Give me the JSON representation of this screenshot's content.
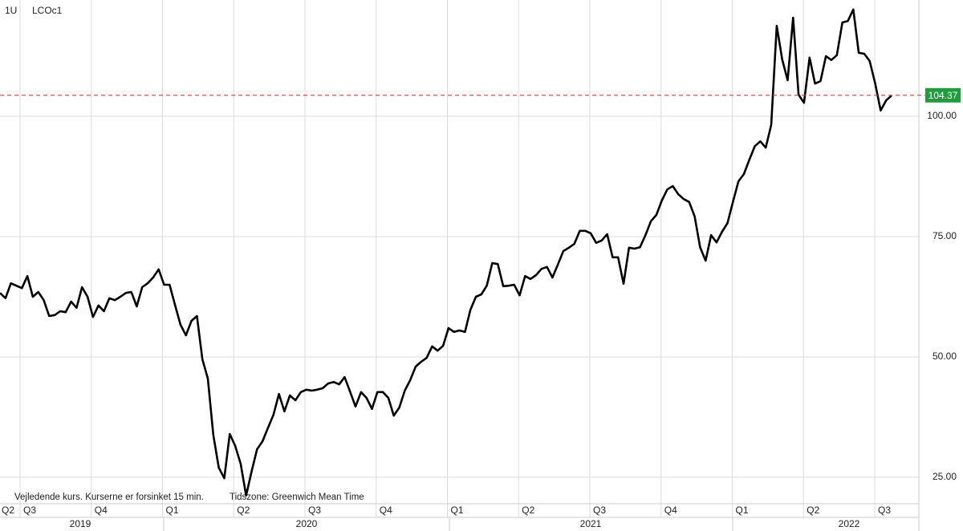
{
  "chart_data": {
    "type": "line",
    "interval": "1U",
    "symbol": "LCOc1",
    "footnote": "Vejledende kurs. Kurserne er forsinket 15 min.",
    "timezone": "Tidszone: Greenwich Mean Time",
    "quarters": [
      "Q2",
      "Q3",
      "Q4",
      "Q1",
      "Q2",
      "Q3",
      "Q4",
      "Q1",
      "Q2",
      "Q3",
      "Q4",
      "Q1",
      "Q2",
      "Q3"
    ],
    "years": [
      "2019",
      "2020",
      "2021",
      "2022"
    ],
    "ylim": [
      19.5,
      124.17
    ],
    "yticks": [
      {
        "value": 25,
        "label": "25.00"
      },
      {
        "value": 50,
        "label": "50.00"
      },
      {
        "value": 75,
        "label": "75.00"
      },
      {
        "value": 100,
        "label": "100.00"
      }
    ],
    "grid": true,
    "last_price": 104.37,
    "last_price_color": "#1e9e3a",
    "series": [
      {
        "name": "LCOc1",
        "color": "#000000",
        "values": [
          63.3,
          62.2,
          65.3,
          64.8,
          64.3,
          66.8,
          62.5,
          63.5,
          61.8,
          58.5,
          58.7,
          59.5,
          59.3,
          61.5,
          60.2,
          64.5,
          62.5,
          58.3,
          60.7,
          59.5,
          62.2,
          61.8,
          62.5,
          63.3,
          63.5,
          60.5,
          64.5,
          65.3,
          66.5,
          68.2,
          65.0,
          65.0,
          60.8,
          56.7,
          54.5,
          57.5,
          58.5,
          49.5,
          45.5,
          33.8,
          27.0,
          24.8,
          34.0,
          31.5,
          27.8,
          21.2,
          26.2,
          30.8,
          32.5,
          35.3,
          38.0,
          42.3,
          38.7,
          42.0,
          41.0,
          42.7,
          43.2,
          43.0,
          43.2,
          43.5,
          44.5,
          44.8,
          44.3,
          45.8,
          42.8,
          39.7,
          42.7,
          41.5,
          39.2,
          42.7,
          42.7,
          41.5,
          37.8,
          39.5,
          43.0,
          45.2,
          48.0,
          49.0,
          49.8,
          52.2,
          51.3,
          52.3,
          56.0,
          55.2,
          55.5,
          55.2,
          59.8,
          62.5,
          63.0,
          64.8,
          69.5,
          69.3,
          64.7,
          64.8,
          65.0,
          62.8,
          66.8,
          66.2,
          67.0,
          68.3,
          68.7,
          66.5,
          69.2,
          72.0,
          72.7,
          73.5,
          76.2,
          76.2,
          75.7,
          73.7,
          74.2,
          75.5,
          70.7,
          70.7,
          65.2,
          72.7,
          72.5,
          72.8,
          75.3,
          78.2,
          79.5,
          82.5,
          84.8,
          85.5,
          83.8,
          82.8,
          82.2,
          79.2,
          72.8,
          70.0,
          75.3,
          73.8,
          76.0,
          77.8,
          82.2,
          86.5,
          88.0,
          91.0,
          93.8,
          94.8,
          93.5,
          98.2,
          118.8,
          111.8,
          107.5,
          120.5,
          104.5,
          102.8,
          112.2,
          106.8,
          107.3,
          112.5,
          111.7,
          112.7,
          119.5,
          119.8,
          122.2,
          113.2,
          113.0,
          111.5,
          106.8,
          101.2,
          103.3,
          104.3
        ]
      }
    ]
  }
}
